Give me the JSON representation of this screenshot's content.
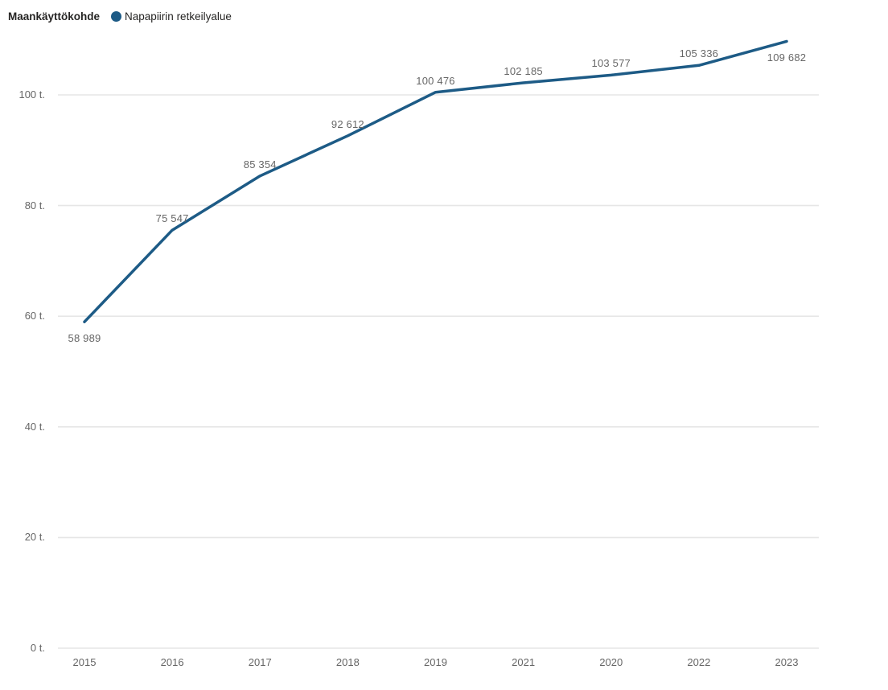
{
  "legend": {
    "title": "Maankäyttökohde",
    "series_label": "Napapiirin retkeilyalue"
  },
  "colors": {
    "line": "#1D5B86",
    "grid": "#E6E6E6",
    "axis_text": "#666666",
    "data_label_text": "#666666",
    "legend_text": "#252423"
  },
  "chart_data": {
    "type": "line",
    "title": "",
    "xlabel": "",
    "ylabel": "",
    "categories": [
      "2015",
      "2016",
      "2017",
      "2018",
      "2019",
      "2021",
      "2020",
      "2022",
      "2023"
    ],
    "series": [
      {
        "name": "Napapiirin retkeilyalue",
        "values": [
          58989,
          75547,
          85354,
          92612,
          100476,
          102185,
          103577,
          105336,
          109682
        ]
      }
    ],
    "data_labels": [
      "58 989",
      "75 547",
      "85 354",
      "92 612",
      "100 476",
      "102 185",
      "103 577",
      "105 336",
      "109 682"
    ],
    "data_label_positions": [
      "below",
      "above",
      "above",
      "above",
      "above",
      "above",
      "above",
      "above",
      "below"
    ],
    "y_ticks": [
      {
        "value": 0,
        "label": "0 t."
      },
      {
        "value": 20000,
        "label": "20 t."
      },
      {
        "value": 40000,
        "label": "40 t."
      },
      {
        "value": 60000,
        "label": "60 t."
      },
      {
        "value": 80000,
        "label": "80 t."
      },
      {
        "value": 100000,
        "label": "100 t."
      }
    ],
    "ylim": [
      0,
      110000
    ],
    "grid": "horizontal",
    "legend_position": "top-left",
    "note_sort_order": "categories sorted ascending by value"
  }
}
